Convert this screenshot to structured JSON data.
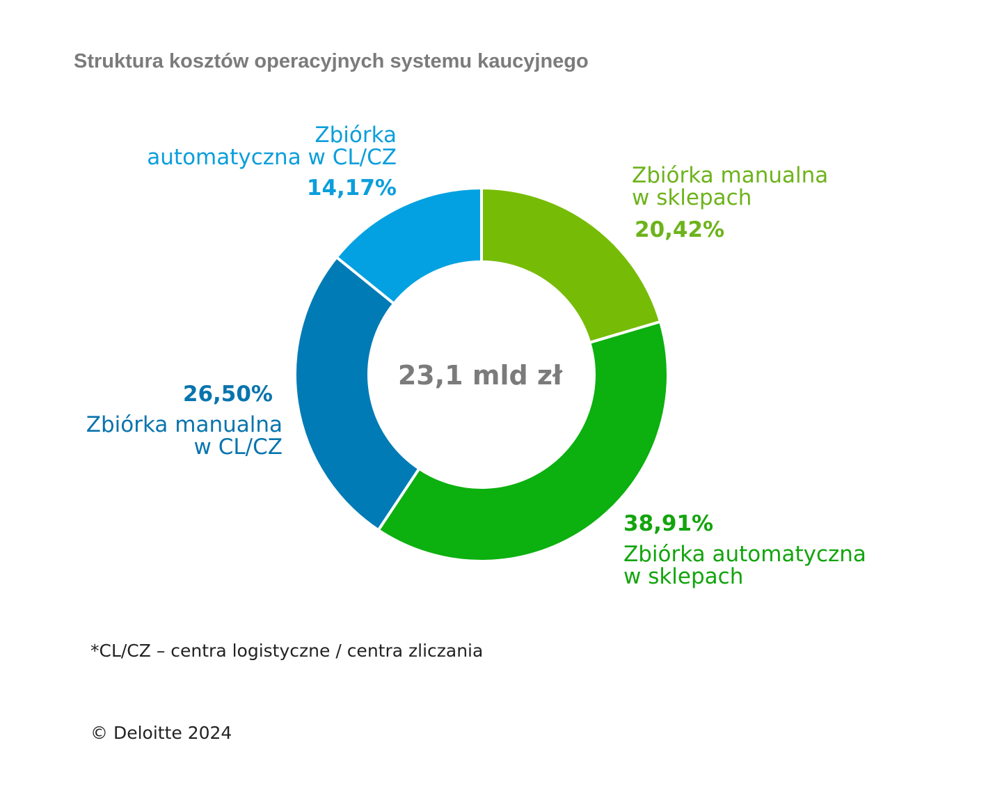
{
  "chart_data": {
    "type": "pie",
    "title": "Struktura kosztów operacyjnych systemu kaucyjnego",
    "center_label": "23,1 mld zł",
    "slices": [
      {
        "name_line1": "Zbiórka manualna",
        "name_line2": "w sklepach",
        "value": 20.42,
        "label": "20,42%",
        "color": "#76bc06",
        "text_color": "#6db31b"
      },
      {
        "name_line1": "Zbiórka automatyczna",
        "name_line2": "w sklepach",
        "value": 38.91,
        "label": "38,91%",
        "color": "#0cb00f",
        "text_color": "#13a40e"
      },
      {
        "name_line1": "Zbiórka manualna",
        "name_line2": "w CL/CZ",
        "value": 26.5,
        "label": "26,50%",
        "color": "#017bb5",
        "text_color": "#0874ad"
      },
      {
        "name_line1": "Zbiórka",
        "name_line2": "automatyczna w CL/CZ",
        "value": 14.17,
        "label": "14,17%",
        "color": "#03a1e1",
        "text_color": "#0b9edc"
      }
    ]
  },
  "footnote": "*CL/CZ – centra logistyczne / centra zliczania",
  "copyright": "© Deloitte 2024"
}
